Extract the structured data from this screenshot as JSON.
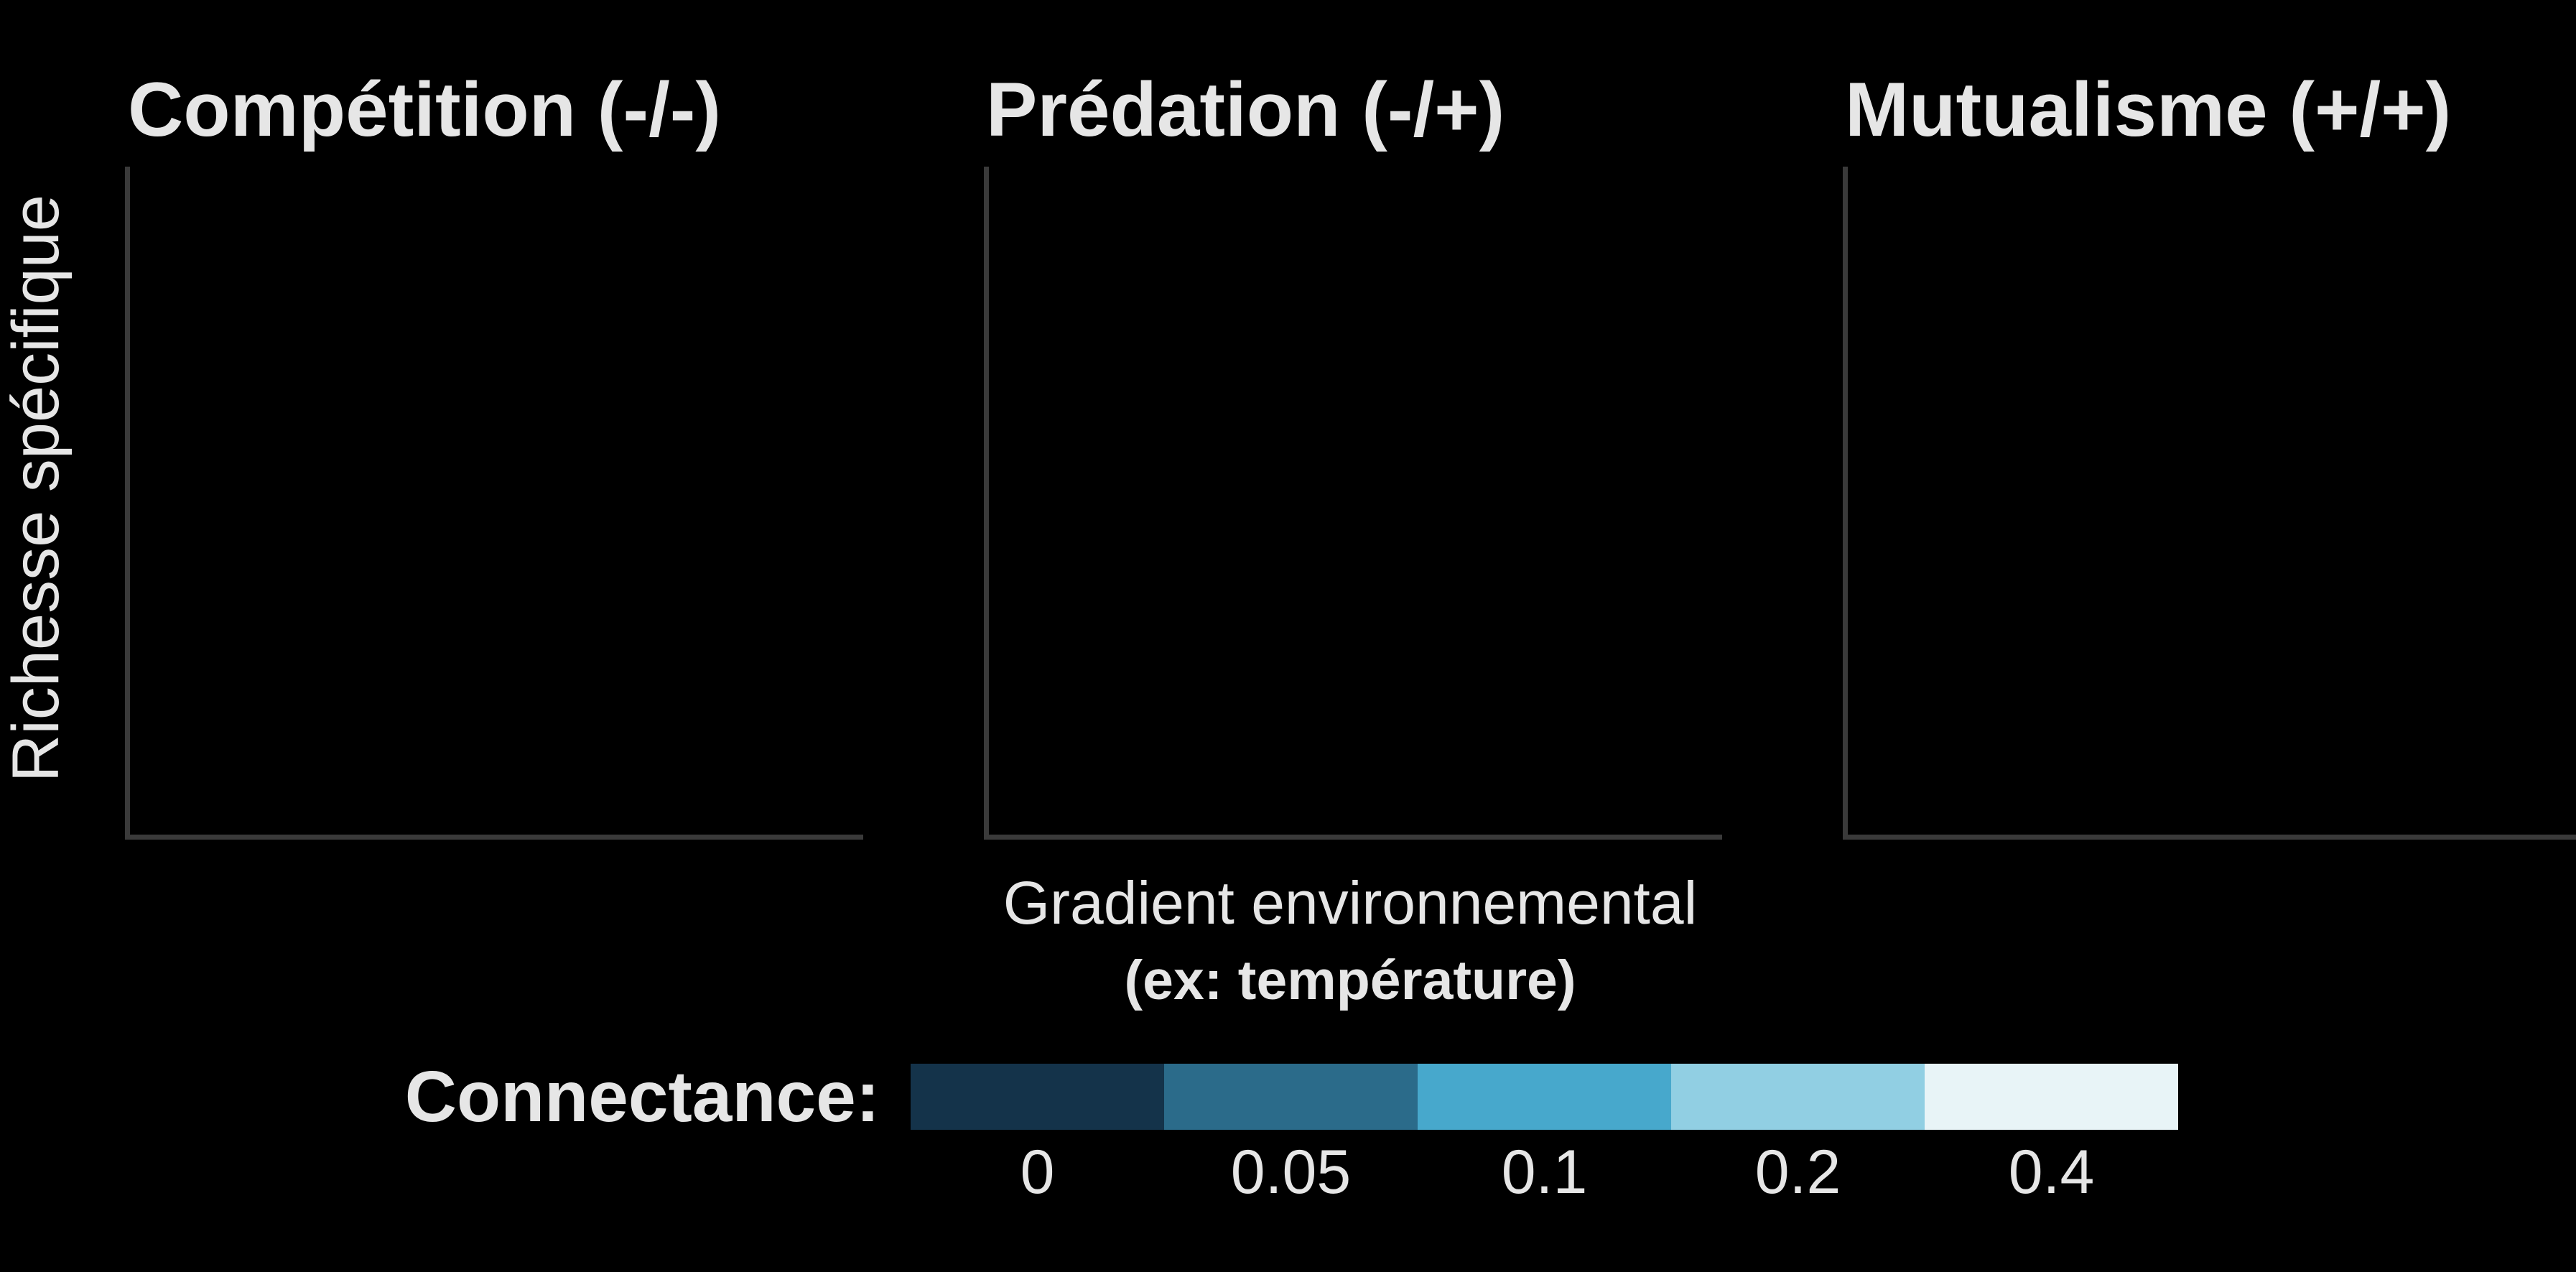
{
  "chart_data": {
    "type": "line",
    "panels": [
      {
        "title": "Compétition (-/-)"
      },
      {
        "title": "Prédation (-/+)"
      },
      {
        "title": "Mutualisme (+/+)"
      }
    ],
    "ylabel": "Richesse spécifique",
    "xlabel": "Gradient environnemental",
    "xlabel_sub": "(ex: température)",
    "series": [],
    "grid": false,
    "legend": {
      "title": "Connectance:",
      "placement": "bottom",
      "entries": [
        {
          "label": "0",
          "color": "#14334a"
        },
        {
          "label": "0.05",
          "color": "#2b6b8a"
        },
        {
          "label": "0.1",
          "color": "#47a8cc"
        },
        {
          "label": "0.2",
          "color": "#91cfe3"
        },
        {
          "label": "0.4",
          "color": "#e8f4f7"
        }
      ]
    }
  }
}
